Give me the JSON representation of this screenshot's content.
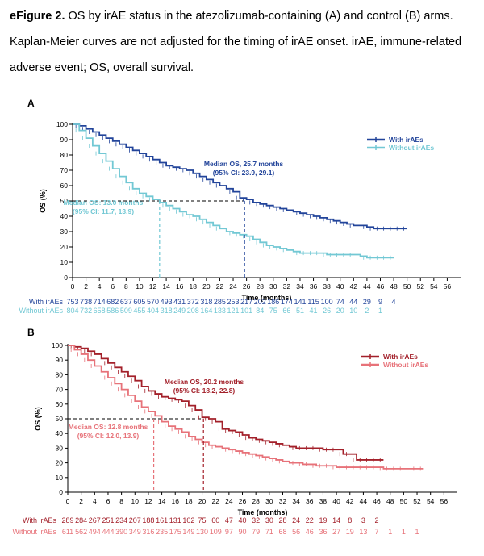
{
  "caption": {
    "label": "eFigure 2.",
    "text": " OS by irAE status in the atezolizumab-containing (A) and control (B) arms. Kaplan-Meier curves are not adjusted for the timing of irAE onset. irAE, immune-related adverse event; OS, overall survival."
  },
  "chart_data": [
    {
      "type": "line",
      "panel_label": "A",
      "xlabel": "Time (months)",
      "ylabel": "OS (%)",
      "xlim": [
        0,
        58
      ],
      "ylim": [
        0,
        100
      ],
      "xticks": [
        0,
        2,
        4,
        6,
        8,
        10,
        12,
        14,
        16,
        18,
        20,
        22,
        24,
        26,
        28,
        30,
        32,
        34,
        36,
        38,
        40,
        42,
        44,
        46,
        48,
        50,
        52,
        54,
        56
      ],
      "yticks": [
        0,
        10,
        20,
        30,
        40,
        50,
        60,
        70,
        80,
        90,
        100
      ],
      "legend_position": "top-right",
      "series": [
        {
          "name": "With irAEs",
          "color": "#22449a",
          "points": [
            [
              0,
              100
            ],
            [
              1,
              99
            ],
            [
              2,
              97
            ],
            [
              3,
              95
            ],
            [
              4,
              93
            ],
            [
              5,
              91
            ],
            [
              6,
              89
            ],
            [
              7,
              87
            ],
            [
              8,
              85
            ],
            [
              9,
              83
            ],
            [
              10,
              81
            ],
            [
              11,
              79
            ],
            [
              12,
              77
            ],
            [
              13,
              75
            ],
            [
              14,
              73
            ],
            [
              15,
              72
            ],
            [
              16,
              71
            ],
            [
              17,
              70
            ],
            [
              18,
              68
            ],
            [
              19,
              66
            ],
            [
              20,
              64
            ],
            [
              21,
              62
            ],
            [
              22,
              60
            ],
            [
              23,
              58
            ],
            [
              24,
              56
            ],
            [
              25,
              52
            ],
            [
              26,
              51
            ],
            [
              27,
              49
            ],
            [
              28,
              48
            ],
            [
              29,
              47
            ],
            [
              30,
              46
            ],
            [
              31,
              45
            ],
            [
              32,
              44
            ],
            [
              33,
              43
            ],
            [
              34,
              42
            ],
            [
              35,
              41
            ],
            [
              36,
              40
            ],
            [
              37,
              39
            ],
            [
              38,
              38
            ],
            [
              39,
              37
            ],
            [
              40,
              36
            ],
            [
              41,
              35
            ],
            [
              42,
              34
            ],
            [
              43,
              34
            ],
            [
              44,
              33
            ],
            [
              45,
              32
            ],
            [
              46,
              32
            ],
            [
              47,
              32
            ],
            [
              48,
              32
            ],
            [
              49,
              32
            ],
            [
              50,
              32
            ]
          ]
        },
        {
          "name": "Without irAEs",
          "color": "#72c8d4",
          "points": [
            [
              0,
              100
            ],
            [
              1,
              96
            ],
            [
              2,
              91
            ],
            [
              3,
              86
            ],
            [
              4,
              81
            ],
            [
              5,
              76
            ],
            [
              6,
              71
            ],
            [
              7,
              66
            ],
            [
              8,
              62
            ],
            [
              9,
              58
            ],
            [
              10,
              55
            ],
            [
              11,
              53
            ],
            [
              12,
              51
            ],
            [
              13,
              49
            ],
            [
              14,
              47
            ],
            [
              15,
              45
            ],
            [
              16,
              43
            ],
            [
              17,
              41
            ],
            [
              18,
              40
            ],
            [
              19,
              38
            ],
            [
              20,
              36
            ],
            [
              21,
              34
            ],
            [
              22,
              32
            ],
            [
              23,
              30
            ],
            [
              24,
              29
            ],
            [
              25,
              28
            ],
            [
              26,
              27
            ],
            [
              27,
              25
            ],
            [
              28,
              23
            ],
            [
              29,
              21
            ],
            [
              30,
              20
            ],
            [
              31,
              19
            ],
            [
              32,
              18
            ],
            [
              33,
              17
            ],
            [
              34,
              16
            ],
            [
              35,
              16
            ],
            [
              36,
              16
            ],
            [
              37,
              16
            ],
            [
              38,
              15
            ],
            [
              39,
              15
            ],
            [
              40,
              15
            ],
            [
              41,
              15
            ],
            [
              42,
              15
            ],
            [
              43,
              14
            ],
            [
              44,
              13
            ],
            [
              45,
              13
            ],
            [
              46,
              13
            ],
            [
              47,
              13
            ],
            [
              48,
              13
            ]
          ]
        }
      ],
      "median_annotations": [
        {
          "series": "With irAEs",
          "line1": "Median OS, 25.7 months",
          "line2": "(95% CI: 23.9, 29.1)",
          "median_x": 25.7
        },
        {
          "series": "Without irAEs",
          "line1": "Median OS: 13.0 months",
          "line2": "(95% CI: 11.7, 13.9)",
          "median_x": 13.0
        }
      ],
      "risk_table": {
        "rows": [
          {
            "label": "With irAEs",
            "values": [
              "753",
              "738",
              "714",
              "682",
              "637",
              "605",
              "570",
              "493",
              "431",
              "372",
              "318",
              "285",
              "253",
              "217",
              "202",
              "186",
              "174",
              "141",
              "115",
              "100",
              "74",
              "44",
              "29",
              "9",
              "4"
            ]
          },
          {
            "label": "Without irAEs",
            "values": [
              "804",
              "732",
              "658",
              "586",
              "509",
              "455",
              "404",
              "318",
              "249",
              "208",
              "164",
              "133",
              "121",
              "101",
              "84",
              "75",
              "66",
              "51",
              "41",
              "26",
              "20",
              "10",
              "2",
              "1"
            ]
          }
        ]
      }
    },
    {
      "type": "line",
      "panel_label": "B",
      "xlabel": "Time (months)",
      "ylabel": "OS (%)",
      "xlim": [
        0,
        58
      ],
      "ylim": [
        0,
        100
      ],
      "xticks": [
        0,
        2,
        4,
        6,
        8,
        10,
        12,
        14,
        16,
        18,
        20,
        22,
        24,
        26,
        28,
        30,
        32,
        34,
        36,
        38,
        40,
        42,
        44,
        46,
        48,
        50,
        52,
        54,
        56
      ],
      "yticks": [
        0,
        10,
        20,
        30,
        40,
        50,
        60,
        70,
        80,
        90,
        100
      ],
      "legend_position": "top-right",
      "series": [
        {
          "name": "With irAEs",
          "color": "#a3202a",
          "points": [
            [
              0,
              100
            ],
            [
              1,
              99
            ],
            [
              2,
              98
            ],
            [
              3,
              96
            ],
            [
              4,
              94
            ],
            [
              5,
              91
            ],
            [
              6,
              88
            ],
            [
              7,
              85
            ],
            [
              8,
              82
            ],
            [
              9,
              79
            ],
            [
              10,
              76
            ],
            [
              11,
              72
            ],
            [
              12,
              69
            ],
            [
              13,
              67
            ],
            [
              14,
              65
            ],
            [
              15,
              64
            ],
            [
              16,
              63
            ],
            [
              17,
              62
            ],
            [
              18,
              59
            ],
            [
              19,
              56
            ],
            [
              20,
              51
            ],
            [
              21,
              50
            ],
            [
              22,
              48
            ],
            [
              23,
              43
            ],
            [
              24,
              42
            ],
            [
              25,
              41
            ],
            [
              26,
              39
            ],
            [
              27,
              37
            ],
            [
              28,
              36
            ],
            [
              29,
              35
            ],
            [
              30,
              34
            ],
            [
              31,
              33
            ],
            [
              32,
              32
            ],
            [
              33,
              31
            ],
            [
              34,
              30
            ],
            [
              35,
              30
            ],
            [
              36,
              30
            ],
            [
              37,
              30
            ],
            [
              38,
              29
            ],
            [
              39,
              29
            ],
            [
              40,
              29
            ],
            [
              41,
              26
            ],
            [
              42,
              26
            ],
            [
              43,
              22
            ],
            [
              44,
              22
            ],
            [
              45,
              22
            ],
            [
              46,
              22
            ],
            [
              47,
              22
            ]
          ]
        },
        {
          "name": "Without irAEs",
          "color": "#e77279",
          "points": [
            [
              0,
              100
            ],
            [
              1,
              97
            ],
            [
              2,
              94
            ],
            [
              3,
              90
            ],
            [
              4,
              86
            ],
            [
              5,
              82
            ],
            [
              6,
              78
            ],
            [
              7,
              74
            ],
            [
              8,
              70
            ],
            [
              9,
              66
            ],
            [
              10,
              62
            ],
            [
              11,
              58
            ],
            [
              12,
              55
            ],
            [
              13,
              52
            ],
            [
              14,
              48
            ],
            [
              15,
              45
            ],
            [
              16,
              43
            ],
            [
              17,
              41
            ],
            [
              18,
              38
            ],
            [
              19,
              36
            ],
            [
              20,
              34
            ],
            [
              21,
              32
            ],
            [
              22,
              31
            ],
            [
              23,
              30
            ],
            [
              24,
              29
            ],
            [
              25,
              28
            ],
            [
              26,
              27
            ],
            [
              27,
              26
            ],
            [
              28,
              25
            ],
            [
              29,
              24
            ],
            [
              30,
              23
            ],
            [
              31,
              22
            ],
            [
              32,
              21
            ],
            [
              33,
              20
            ],
            [
              34,
              20
            ],
            [
              35,
              19
            ],
            [
              36,
              19
            ],
            [
              37,
              18
            ],
            [
              38,
              18
            ],
            [
              39,
              18
            ],
            [
              40,
              17
            ],
            [
              41,
              17
            ],
            [
              42,
              17
            ],
            [
              43,
              17
            ],
            [
              44,
              17
            ],
            [
              45,
              17
            ],
            [
              46,
              17
            ],
            [
              47,
              16
            ],
            [
              48,
              16
            ],
            [
              49,
              16
            ],
            [
              50,
              16
            ],
            [
              51,
              16
            ],
            [
              52,
              16
            ],
            [
              53,
              16
            ]
          ]
        }
      ],
      "median_annotations": [
        {
          "series": "With irAEs",
          "line1": "Median OS, 20.2 months",
          "line2": "(95% CI: 18.2, 22.8)",
          "median_x": 20.2
        },
        {
          "series": "Without irAEs",
          "line1": "Median OS: 12.8 months",
          "line2": "(95% CI: 12.0, 13.9)",
          "median_x": 12.8
        }
      ],
      "risk_table": {
        "rows": [
          {
            "label": "With irAEs",
            "values": [
              "289",
              "284",
              "267",
              "251",
              "234",
              "207",
              "188",
              "161",
              "131",
              "102",
              "75",
              "60",
              "47",
              "40",
              "32",
              "30",
              "28",
              "24",
              "22",
              "19",
              "14",
              "8",
              "3",
              "2"
            ]
          },
          {
            "label": "Without irAEs",
            "values": [
              "611",
              "562",
              "494",
              "444",
              "390",
              "349",
              "316",
              "235",
              "175",
              "149",
              "130",
              "109",
              "97",
              "90",
              "79",
              "71",
              "68",
              "56",
              "46",
              "36",
              "27",
              "19",
              "13",
              "7",
              "1",
              "1",
              "1"
            ]
          }
        ]
      }
    }
  ]
}
